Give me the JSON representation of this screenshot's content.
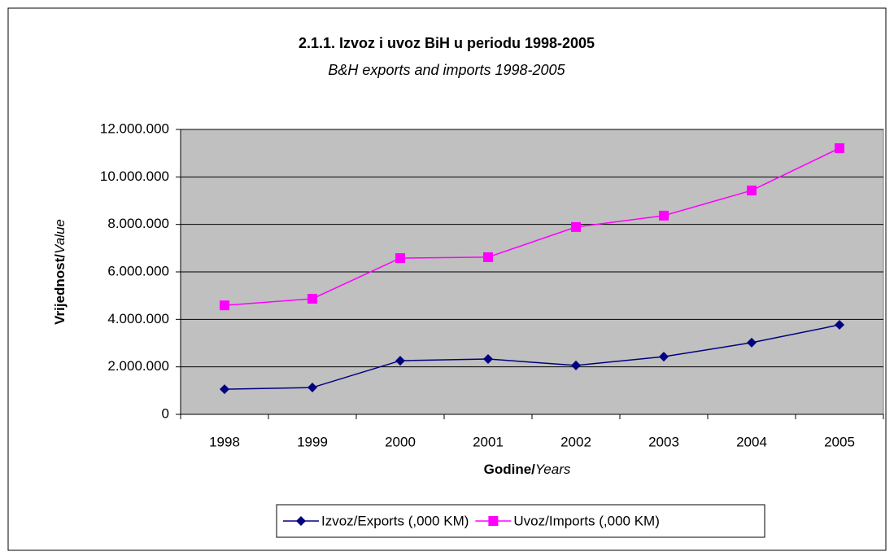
{
  "chart_data": {
    "type": "line",
    "title": "2.1.1. Izvoz i uvoz BiH u periodu 1998-2005",
    "subtitle": "B&H exports and imports 1998-2005",
    "ylabel": {
      "bold": "Vrijednost/",
      "italic": "Value"
    },
    "xlabel": {
      "bold": "Godine/",
      "italic": "Years"
    },
    "categories": [
      "1998",
      "1999",
      "2000",
      "2001",
      "2002",
      "2003",
      "2004",
      "2005"
    ],
    "series": [
      {
        "name": "Izvoz/Exports (,000 KM)",
        "color": "#000080",
        "marker": "diamond",
        "values": [
          1060000,
          1130000,
          2260000,
          2330000,
          2060000,
          2430000,
          3020000,
          3770000
        ]
      },
      {
        "name": "Uvoz/Imports (,000 KM)",
        "color": "#ff00ff",
        "marker": "square",
        "values": [
          4590000,
          4870000,
          6580000,
          6620000,
          7890000,
          8370000,
          9430000,
          11210000
        ]
      }
    ],
    "ylim": [
      0,
      12000000
    ],
    "yticks": [
      0,
      {
        "value": 2000000,
        "label": "2.000.000"
      },
      {
        "value": 4000000,
        "label": "4.000.000"
      },
      {
        "value": 6000000,
        "label": "6.000.000"
      },
      {
        "value": 8000000,
        "label": "8.000.000"
      },
      {
        "value": 10000000,
        "label": "10.000.000"
      },
      {
        "value": 12000000,
        "label": "12.000.000"
      }
    ],
    "grid": true,
    "plot_background": "#c0c0c0",
    "legend": "bottom"
  }
}
